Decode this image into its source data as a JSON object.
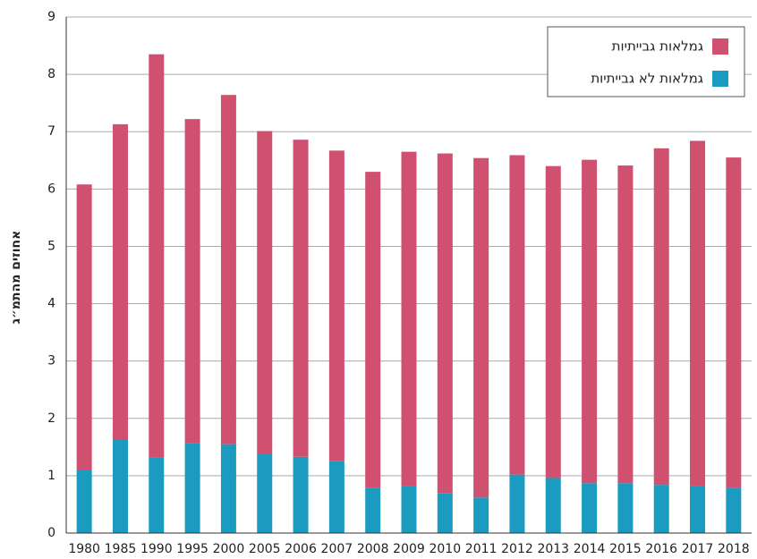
{
  "chart_data": {
    "type": "stacked-bar",
    "y_label": "אחוזים מהתמ״ג",
    "categories": [
      "1980",
      "1985",
      "1990",
      "1995",
      "2000",
      "2005",
      "2006",
      "2007",
      "2008",
      "2009",
      "2010",
      "2011",
      "2012",
      "2013",
      "2014",
      "2015",
      "2016",
      "2017",
      "2018"
    ],
    "series": [
      {
        "name": "גמלאות לא גבייתיות",
        "color": "#1a9bbf",
        "values": [
          1.1,
          1.63,
          1.32,
          1.57,
          1.55,
          1.38,
          1.33,
          1.25,
          0.79,
          0.82,
          0.69,
          0.62,
          1.02,
          0.96,
          0.87,
          0.87,
          0.84,
          0.82,
          0.79
        ]
      },
      {
        "name": "גמלאות גבייתיות",
        "color": "#d05070",
        "values": [
          4.98,
          5.5,
          7.03,
          5.65,
          6.09,
          5.63,
          5.53,
          5.42,
          5.51,
          5.83,
          5.93,
          5.92,
          5.57,
          5.44,
          5.64,
          5.54,
          5.87,
          6.02,
          5.76
        ]
      }
    ],
    "ylim": [
      0,
      9
    ],
    "yticks": [
      0,
      1,
      2,
      3,
      4,
      5,
      6,
      7,
      8,
      9
    ],
    "grid": true,
    "legend": "top-right"
  }
}
